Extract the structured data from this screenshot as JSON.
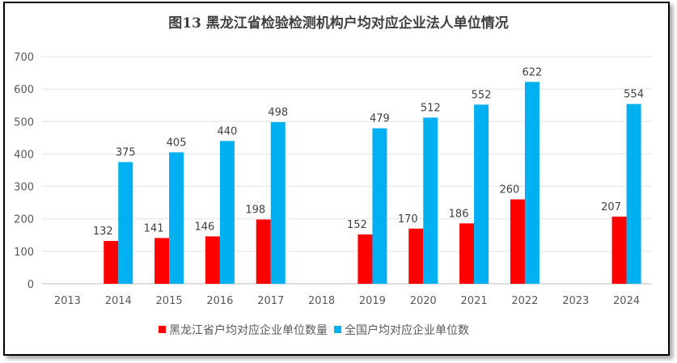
{
  "chart_data": {
    "type": "bar",
    "title": "图13 黑龙江省检验检测机构户均对应企业法人单位情况",
    "xlabel": "",
    "ylabel": "",
    "ylim": [
      0,
      700
    ],
    "yticks": [
      0,
      100,
      200,
      300,
      400,
      500,
      600,
      700
    ],
    "grid": true,
    "legend_position": "bottom",
    "categories": [
      "2013",
      "2014",
      "2015",
      "2016",
      "2017",
      "2018",
      "2019",
      "2020",
      "2021",
      "2022",
      "2023",
      "2024"
    ],
    "series": [
      {
        "name": "黑龙江省户均对应企业单位数量",
        "color": "#ff0000",
        "values": [
          null,
          132,
          141,
          146,
          198,
          null,
          152,
          170,
          186,
          260,
          null,
          207
        ]
      },
      {
        "name": "全国户均对应企业单位数",
        "color": "#00b0f0",
        "values": [
          null,
          375,
          405,
          440,
          498,
          null,
          479,
          512,
          552,
          622,
          null,
          554
        ]
      }
    ]
  }
}
